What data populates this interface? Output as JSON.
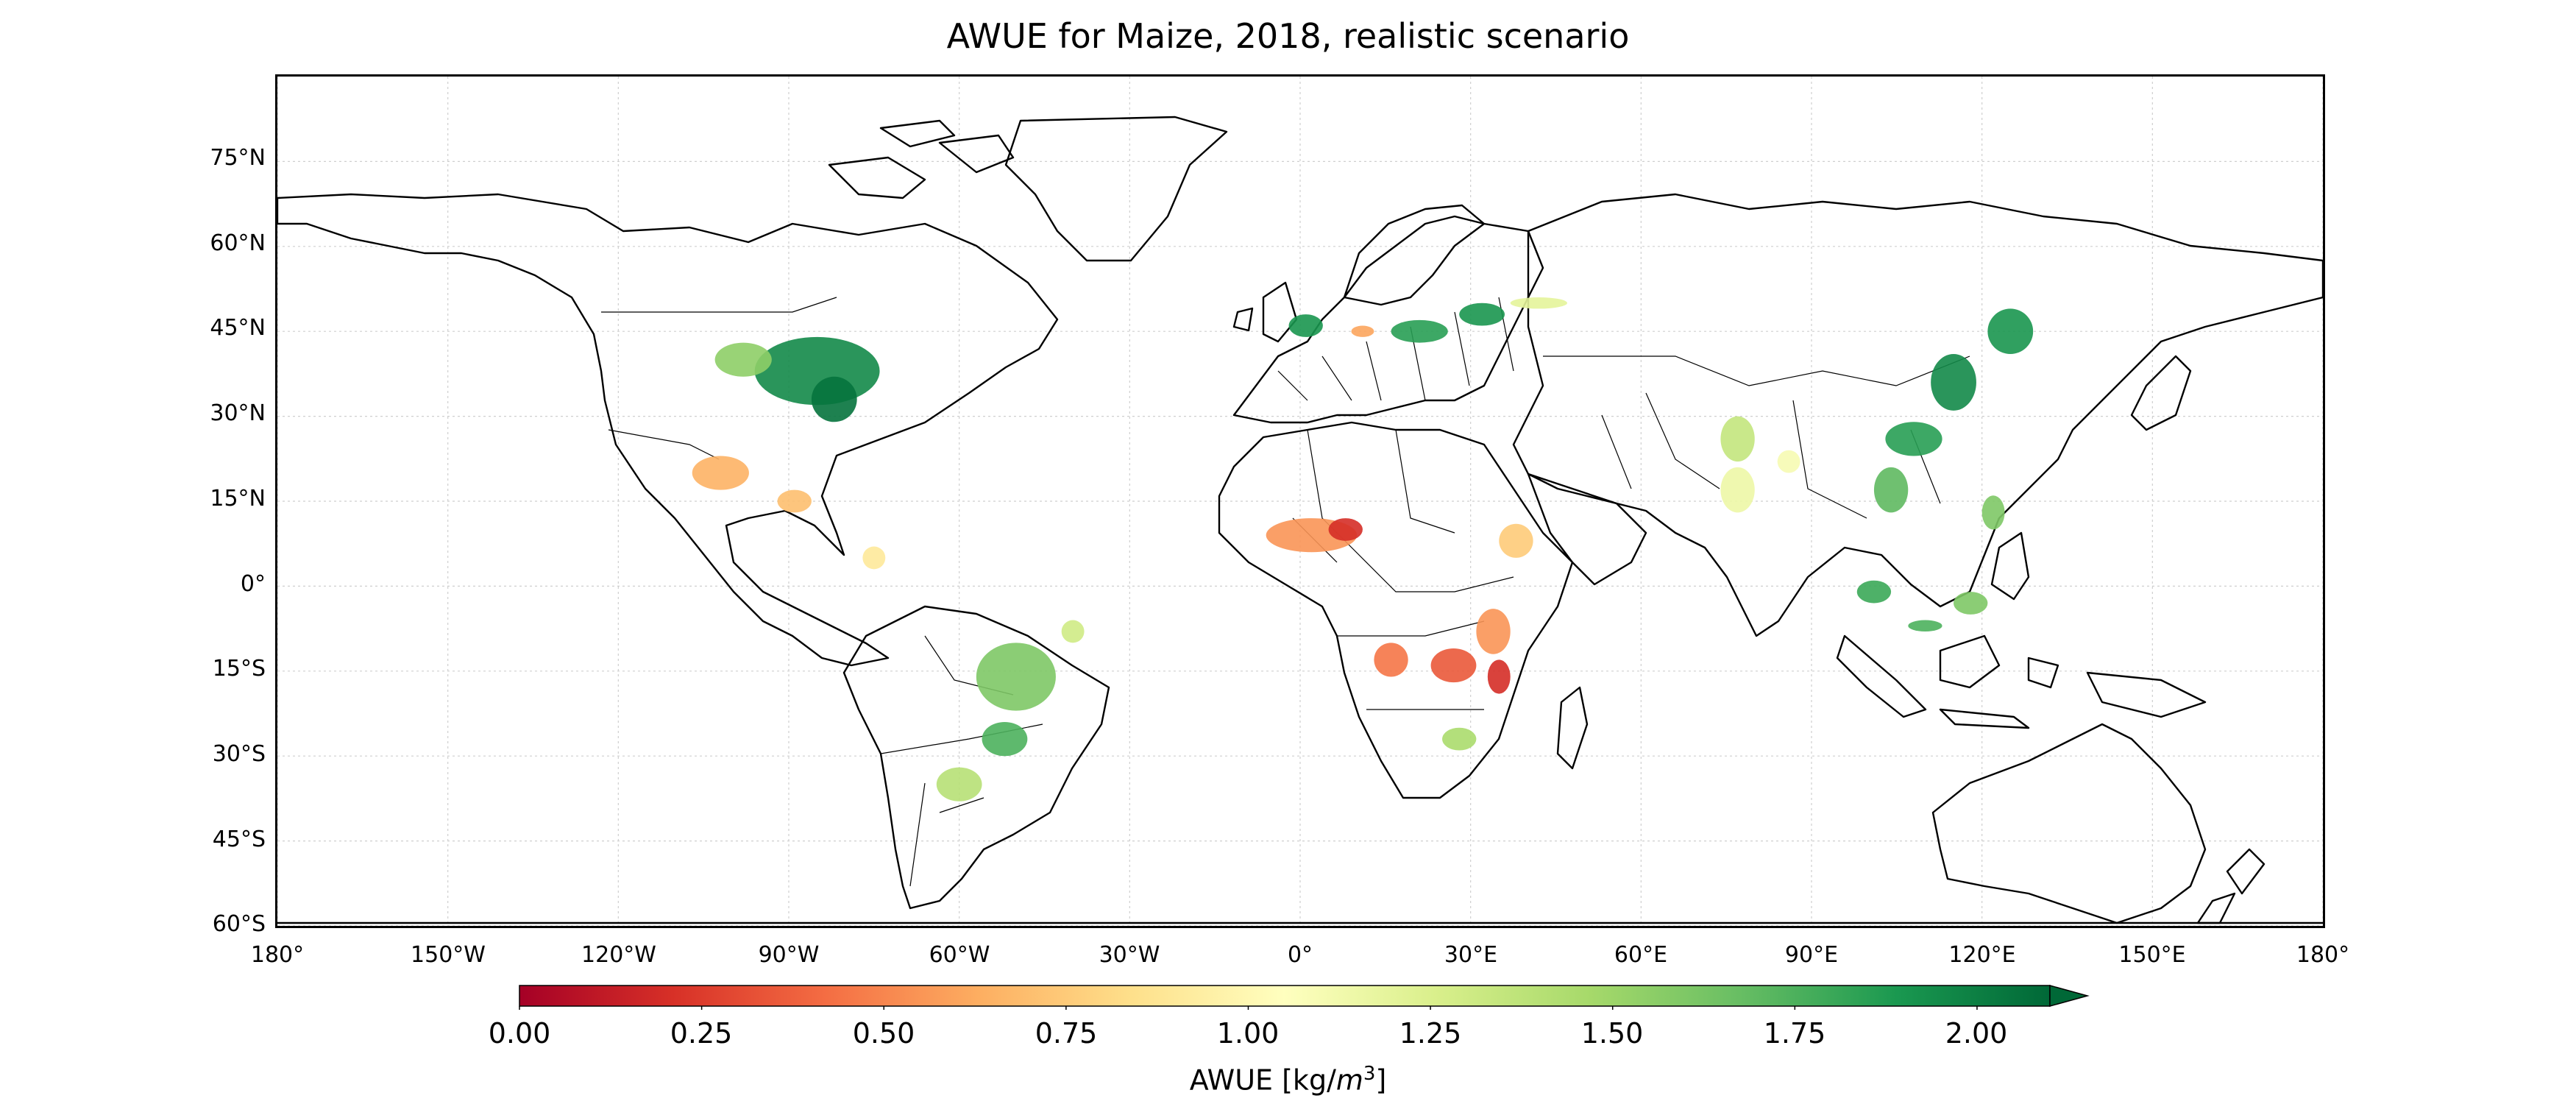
{
  "title": "AWUE for Maize, 2018, realistic scenario",
  "map": {
    "projection": "PlateCarree",
    "extent_lon": [
      -180,
      180
    ],
    "extent_lat": [
      -60,
      90
    ],
    "lat_ticks": [
      {
        "value": 75,
        "label": "75°N"
      },
      {
        "value": 60,
        "label": "60°N"
      },
      {
        "value": 45,
        "label": "45°N"
      },
      {
        "value": 30,
        "label": "30°N"
      },
      {
        "value": 15,
        "label": "15°N"
      },
      {
        "value": 0,
        "label": "0°"
      },
      {
        "value": -15,
        "label": "15°S"
      },
      {
        "value": -30,
        "label": "30°S"
      },
      {
        "value": -45,
        "label": "45°S"
      },
      {
        "value": -60,
        "label": "60°S"
      }
    ],
    "lon_ticks": [
      {
        "value": -180,
        "label": "180°"
      },
      {
        "value": -150,
        "label": "150°W"
      },
      {
        "value": -120,
        "label": "120°W"
      },
      {
        "value": -90,
        "label": "90°W"
      },
      {
        "value": -60,
        "label": "60°W"
      },
      {
        "value": -30,
        "label": "30°W"
      },
      {
        "value": 0,
        "label": "0°"
      },
      {
        "value": 30,
        "label": "30°E"
      },
      {
        "value": 60,
        "label": "60°E"
      },
      {
        "value": 90,
        "label": "90°E"
      },
      {
        "value": 120,
        "label": "120°E"
      },
      {
        "value": 150,
        "label": "150°E"
      },
      {
        "value": 180,
        "label": "180°"
      }
    ],
    "data_regions": [
      {
        "name": "us-corn-belt",
        "lon": -85,
        "lat": 38,
        "rx": 11,
        "ry": 6,
        "value": 1.95
      },
      {
        "name": "us-southeast",
        "lon": -82,
        "lat": 33,
        "rx": 4,
        "ry": 4,
        "value": 2.05
      },
      {
        "name": "us-plains",
        "lon": -98,
        "lat": 40,
        "rx": 5,
        "ry": 3,
        "value": 1.55
      },
      {
        "name": "mexico",
        "lon": -102,
        "lat": 20,
        "rx": 5,
        "ry": 3,
        "value": 0.65
      },
      {
        "name": "central-america",
        "lon": -89,
        "lat": 15,
        "rx": 3,
        "ry": 2,
        "value": 0.7
      },
      {
        "name": "brazil-central",
        "lon": -50,
        "lat": -16,
        "rx": 7,
        "ry": 6,
        "value": 1.6
      },
      {
        "name": "brazil-south",
        "lon": -52,
        "lat": -27,
        "rx": 4,
        "ry": 3,
        "value": 1.75
      },
      {
        "name": "argentina",
        "lon": -60,
        "lat": -35,
        "rx": 4,
        "ry": 3,
        "value": 1.4
      },
      {
        "name": "brazil-northeast",
        "lon": -40,
        "lat": -8,
        "rx": 2,
        "ry": 2,
        "value": 1.3
      },
      {
        "name": "colombia",
        "lon": -75,
        "lat": 5,
        "rx": 2,
        "ry": 2,
        "value": 0.9
      },
      {
        "name": "west-africa",
        "lon": 2,
        "lat": 9,
        "rx": 8,
        "ry": 3,
        "value": 0.55
      },
      {
        "name": "nigeria",
        "lon": 8,
        "lat": 10,
        "rx": 3,
        "ry": 2,
        "value": 0.2
      },
      {
        "name": "ethiopia",
        "lon": 38,
        "lat": 8,
        "rx": 3,
        "ry": 3,
        "value": 0.75
      },
      {
        "name": "east-africa",
        "lon": 34,
        "lat": -8,
        "rx": 3,
        "ry": 4,
        "value": 0.55
      },
      {
        "name": "zambia",
        "lon": 27,
        "lat": -14,
        "rx": 4,
        "ry": 3,
        "value": 0.35
      },
      {
        "name": "mozambique",
        "lon": 35,
        "lat": -16,
        "rx": 2,
        "ry": 3,
        "value": 0.2
      },
      {
        "name": "south-africa",
        "lon": 28,
        "lat": -27,
        "rx": 3,
        "ry": 2,
        "value": 1.45
      },
      {
        "name": "angola",
        "lon": 16,
        "lat": -13,
        "rx": 3,
        "ry": 3,
        "value": 0.45
      },
      {
        "name": "france",
        "lon": 1,
        "lat": 46,
        "rx": 3,
        "ry": 2,
        "value": 1.9
      },
      {
        "name": "danube",
        "lon": 21,
        "lat": 45,
        "rx": 5,
        "ry": 2,
        "value": 1.85
      },
      {
        "name": "ukraine",
        "lon": 32,
        "lat": 48,
        "rx": 4,
        "ry": 2,
        "value": 1.9
      },
      {
        "name": "italy",
        "lon": 11,
        "lat": 45,
        "rx": 2,
        "ry": 1,
        "value": 0.6
      },
      {
        "name": "russia-south",
        "lon": 42,
        "lat": 50,
        "rx": 5,
        "ry": 1,
        "value": 1.2
      },
      {
        "name": "india-north",
        "lon": 77,
        "lat": 26,
        "rx": 3,
        "ry": 4,
        "value": 1.35
      },
      {
        "name": "india-central",
        "lon": 77,
        "lat": 17,
        "rx": 3,
        "ry": 4,
        "value": 1.15
      },
      {
        "name": "india-east",
        "lon": 86,
        "lat": 22,
        "rx": 2,
        "ry": 2,
        "value": 1.1
      },
      {
        "name": "china-northeast",
        "lon": 125,
        "lat": 45,
        "rx": 4,
        "ry": 4,
        "value": 1.9
      },
      {
        "name": "north-china-plain",
        "lon": 115,
        "lat": 36,
        "rx": 4,
        "ry": 5,
        "value": 1.95
      },
      {
        "name": "china-south",
        "lon": 108,
        "lat": 26,
        "rx": 5,
        "ry": 3,
        "value": 1.85
      },
      {
        "name": "indochina",
        "lon": 104,
        "lat": 17,
        "rx": 3,
        "ry": 4,
        "value": 1.7
      },
      {
        "name": "philippines",
        "lon": 122,
        "lat": 13,
        "rx": 2,
        "ry": 3,
        "value": 1.6
      },
      {
        "name": "sumatra",
        "lon": 101,
        "lat": -1,
        "rx": 3,
        "ry": 2,
        "value": 1.8
      },
      {
        "name": "java",
        "lon": 110,
        "lat": -7,
        "rx": 3,
        "ry": 1,
        "value": 1.75
      },
      {
        "name": "indonesia-east",
        "lon": 118,
        "lat": -3,
        "rx": 3,
        "ry": 2,
        "value": 1.6
      }
    ]
  },
  "colorbar": {
    "min": 0,
    "max": 2.1,
    "extend": "max",
    "ticks": [
      "0.00",
      "0.25",
      "0.50",
      "0.75",
      "1.00",
      "1.25",
      "1.50",
      "1.75",
      "2.00"
    ],
    "label_text": "AWUE [kg/",
    "label_var": "m",
    "label_exp": "3",
    "label_close": "]",
    "colormap": "RdYlGn",
    "colors": [
      "#a50026",
      "#d73027",
      "#f46d43",
      "#fdae61",
      "#fee08b",
      "#ffffbf",
      "#d9ef8b",
      "#a6d96a",
      "#66bd63",
      "#1a9850",
      "#006837"
    ]
  }
}
